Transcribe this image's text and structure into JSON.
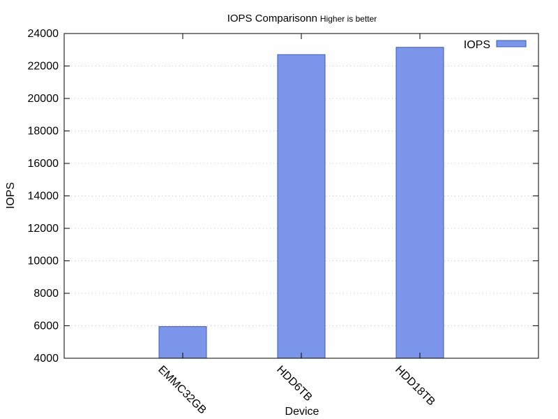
{
  "chart_data": {
    "type": "bar",
    "title": "IOPS Comparisonn",
    "subtitle": "Higher is better",
    "xlabel": "Device",
    "ylabel": "IOPS",
    "categories": [
      "EMMC32GB",
      "HDD6TB",
      "HDD18TB"
    ],
    "series": [
      {
        "name": "IOPS",
        "values": [
          5950,
          22700,
          23150
        ],
        "color": "#7b96eb",
        "edge": "#3a57c7"
      }
    ],
    "ylim": [
      4000,
      24000
    ],
    "yticks": [
      "4000",
      "6000",
      "8000",
      "10000",
      "12000",
      "14000",
      "16000",
      "18000",
      "20000",
      "22000",
      "24000"
    ],
    "grid": {
      "y": true,
      "x": false,
      "style": "dotted"
    },
    "legend": "top-right",
    "xtick_rotation": "45deg"
  }
}
